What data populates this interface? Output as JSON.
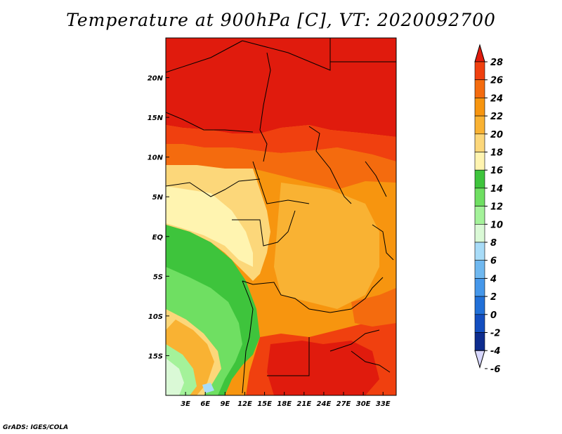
{
  "title": "Temperature at 900hPa [C], VT: 2020092700",
  "footer": "GrADS: IGES/COLA",
  "axes": {
    "lon_labels": [
      "3E",
      "6E",
      "9E",
      "12E",
      "15E",
      "18E",
      "21E",
      "24E",
      "27E",
      "30E",
      "33E"
    ],
    "lon_values": [
      3,
      6,
      9,
      12,
      15,
      18,
      21,
      24,
      27,
      30,
      33
    ],
    "lat_labels": [
      "20N",
      "15N",
      "10N",
      "5N",
      "EQ",
      "5S",
      "10S",
      "15S"
    ],
    "lat_values": [
      20,
      15,
      10,
      5,
      0,
      -5,
      -10,
      -15
    ],
    "lon_range": [
      0,
      35
    ],
    "lat_range": [
      -20,
      25
    ]
  },
  "colorbar": {
    "levels": [
      "28",
      "26",
      "24",
      "22",
      "20",
      "18",
      "16",
      "14",
      "12",
      "10",
      "8",
      "6",
      "4",
      "2",
      "0",
      "-2",
      "-4",
      "-6"
    ],
    "colors": [
      "#e01b0d",
      "#f0400f",
      "#f46b0e",
      "#f7950f",
      "#f9b233",
      "#fcd77a",
      "#fff4b0",
      "#3ec43c",
      "#6fdf62",
      "#a4f29a",
      "#daf9d6",
      "#a8dcf8",
      "#6fb8f0",
      "#4597ea",
      "#2170d8",
      "#134ec0",
      "#0d2c8e",
      "#061070",
      "#d8d8ff"
    ]
  }
}
